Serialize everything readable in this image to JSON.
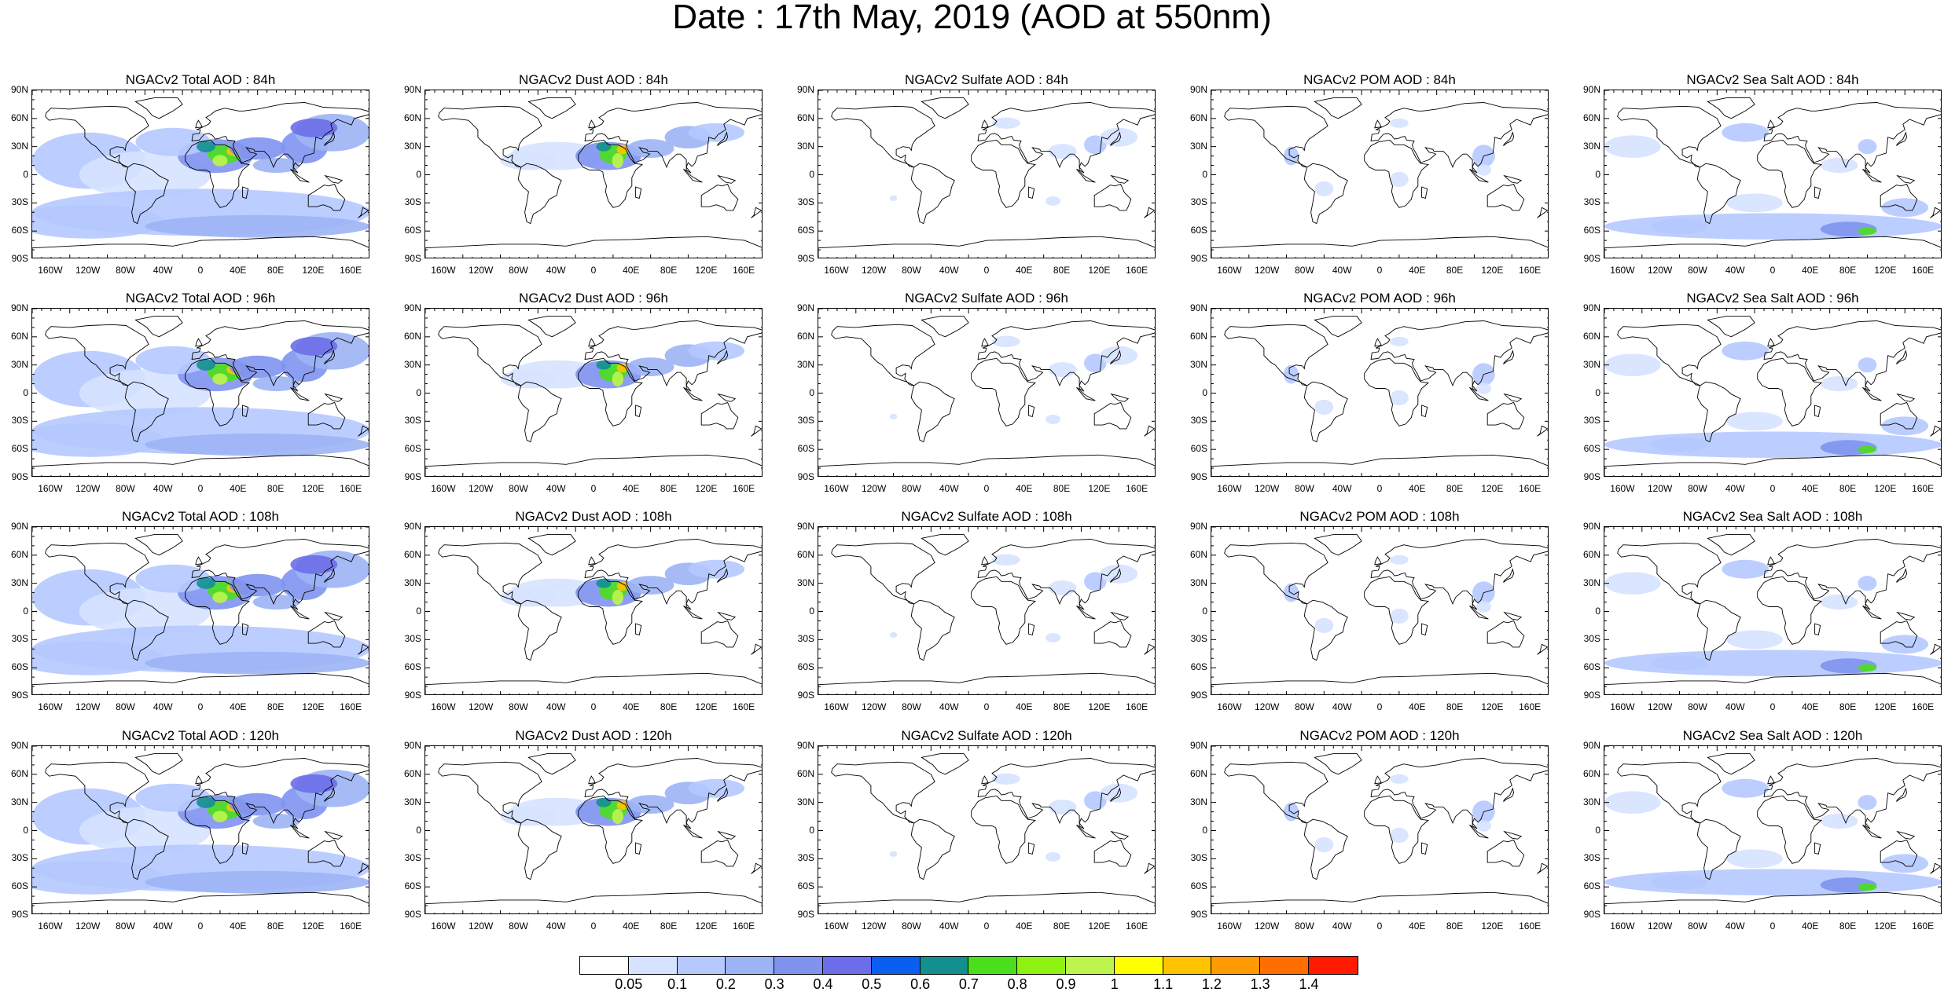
{
  "title": "Date : 17th May, 2019 (AOD at 550nm)",
  "panels": [
    {
      "title": "NGACv2 Total AOD : 84h",
      "species": "total",
      "hour": "84h"
    },
    {
      "title": "NGACv2 Dust AOD : 84h",
      "species": "dust",
      "hour": "84h"
    },
    {
      "title": "NGACv2 Sulfate AOD : 84h",
      "species": "sulfate",
      "hour": "84h"
    },
    {
      "title": "NGACv2 POM AOD : 84h",
      "species": "pom",
      "hour": "84h"
    },
    {
      "title": "NGACv2 Sea Salt AOD : 84h",
      "species": "seasalt",
      "hour": "84h"
    },
    {
      "title": "NGACv2 Total AOD : 96h",
      "species": "total",
      "hour": "96h"
    },
    {
      "title": "NGACv2 Dust AOD : 96h",
      "species": "dust",
      "hour": "96h"
    },
    {
      "title": "NGACv2 Sulfate AOD : 96h",
      "species": "sulfate",
      "hour": "96h"
    },
    {
      "title": "NGACv2 POM AOD : 96h",
      "species": "pom",
      "hour": "96h"
    },
    {
      "title": "NGACv2 Sea Salt AOD : 96h",
      "species": "seasalt",
      "hour": "96h"
    },
    {
      "title": "NGACv2 Total AOD : 108h",
      "species": "total",
      "hour": "108h"
    },
    {
      "title": "NGACv2 Dust AOD : 108h",
      "species": "dust",
      "hour": "108h"
    },
    {
      "title": "NGACv2 Sulfate AOD : 108h",
      "species": "sulfate",
      "hour": "108h"
    },
    {
      "title": "NGACv2 POM AOD : 108h",
      "species": "pom",
      "hour": "108h"
    },
    {
      "title": "NGACv2 Sea Salt AOD : 108h",
      "species": "seasalt",
      "hour": "108h"
    },
    {
      "title": "NGACv2 Total AOD : 120h",
      "species": "total",
      "hour": "120h"
    },
    {
      "title": "NGACv2 Dust AOD : 120h",
      "species": "dust",
      "hour": "120h"
    },
    {
      "title": "NGACv2 Sulfate AOD : 120h",
      "species": "sulfate",
      "hour": "120h"
    },
    {
      "title": "NGACv2 POM AOD : 120h",
      "species": "pom",
      "hour": "120h"
    },
    {
      "title": "NGACv2 Sea Salt  AOD : 120h",
      "species": "seasalt",
      "hour": "120h"
    }
  ],
  "lat_labels": [
    "90N",
    "60N",
    "30N",
    "0",
    "30S",
    "60S",
    "90S"
  ],
  "lon_labels": [
    "160W",
    "120W",
    "80W",
    "40W",
    "0",
    "40E",
    "80E",
    "120E",
    "160E"
  ],
  "lon_values": [
    -160,
    -120,
    -80,
    -40,
    0,
    40,
    80,
    120,
    160
  ],
  "lat_values": [
    90,
    60,
    30,
    0,
    -30,
    -60,
    -90
  ],
  "colorbar": {
    "labels": [
      "0.05",
      "0.1",
      "0.2",
      "0.3",
      "0.4",
      "0.5",
      "0.6",
      "0.7",
      "0.8",
      "0.9",
      "1",
      "1.1",
      "1.2",
      "1.3",
      "1.4"
    ],
    "colors": [
      "#ffffff",
      "#d6e2ff",
      "#b5c9ff",
      "#9cb4f5",
      "#8093ef",
      "#6b6ee8",
      "#0a5ff0",
      "#11908f",
      "#4adf1c",
      "#8ef212",
      "#bdf44e",
      "#ffff00",
      "#ffc400",
      "#ff9a00",
      "#ff6f00",
      "#ff1a00"
    ]
  }
}
